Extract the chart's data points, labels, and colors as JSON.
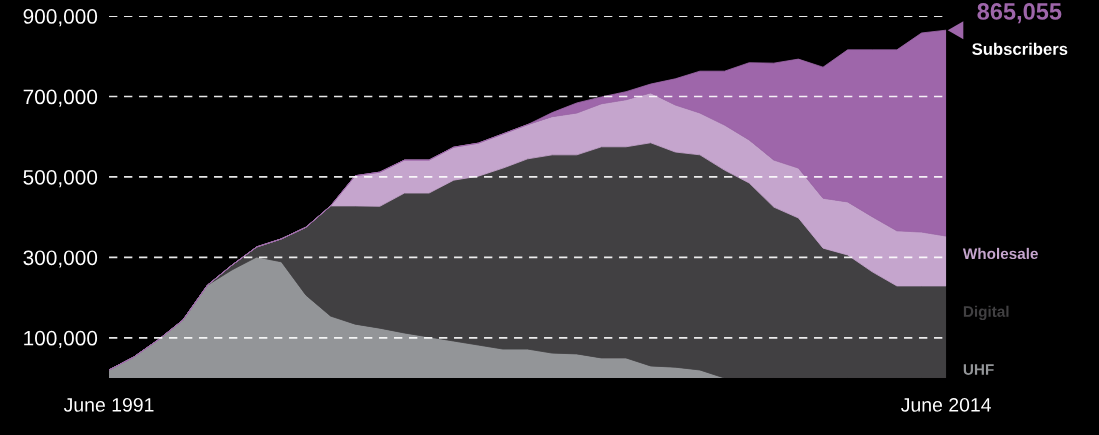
{
  "chart_data": {
    "type": "area",
    "stacked": true,
    "categories": [
      "June 1991",
      null,
      null,
      null,
      null,
      null,
      null,
      null,
      null,
      null,
      null,
      null,
      null,
      null,
      null,
      null,
      null,
      null,
      null,
      null,
      null,
      null,
      null,
      null,
      null,
      null,
      null,
      null,
      null,
      null,
      null,
      null,
      null,
      null,
      "June 2014"
    ],
    "series": [
      {
        "name": "UHF",
        "color": "#939598",
        "values": [
          20000,
          52000,
          95000,
          144000,
          231000,
          269000,
          301000,
          289000,
          206000,
          154000,
          134000,
          124000,
          112000,
          102000,
          92000,
          82000,
          72000,
          72000,
          62000,
          60000,
          50000,
          50000,
          30000,
          27000,
          20000,
          0,
          0,
          0,
          0,
          0,
          0,
          0,
          0,
          0,
          0
        ]
      },
      {
        "name": "Digital",
        "color": "#414042",
        "values": [
          0,
          0,
          0,
          0,
          0,
          12000,
          25000,
          57000,
          169000,
          274000,
          294000,
          303000,
          348000,
          358000,
          400000,
          420000,
          450000,
          473000,
          493000,
          495000,
          525000,
          525000,
          555000,
          535000,
          535000,
          517000,
          485000,
          425000,
          398000,
          323000,
          306000,
          264000,
          229000,
          229000,
          229000
        ]
      },
      {
        "name": "Wholesale",
        "color": "#c5a5cd",
        "values": [
          0,
          0,
          0,
          0,
          0,
          0,
          0,
          0,
          0,
          0,
          75000,
          85000,
          82000,
          82000,
          82000,
          82000,
          85000,
          85000,
          95000,
          104000,
          107000,
          117000,
          124000,
          117000,
          104000,
          112000,
          107000,
          117000,
          124000,
          124000,
          132000,
          137000,
          137000,
          134000,
          124000
        ]
      },
      {
        "color": "#9e66aa",
        "values": [
          0,
          0,
          0,
          0,
          0,
          0,
          0,
          0,
          0,
          0,
          0,
          0,
          0,
          0,
          0,
          0,
          0,
          0,
          10000,
          25000,
          17000,
          20000,
          22000,
          65000,
          104000,
          134000,
          192000,
          241000,
          271000,
          326000,
          378000,
          415000,
          450000,
          495000,
          512000
        ]
      }
    ],
    "ylim": [
      0,
      900000
    ],
    "yticks": [
      {
        "value": 100000,
        "label": "100,000"
      },
      {
        "value": 300000,
        "label": "300,000"
      },
      {
        "value": 500000,
        "label": "500,000"
      },
      {
        "value": 700000,
        "label": "700,000"
      },
      {
        "value": 900000,
        "label": "900,000"
      }
    ],
    "grid": "y",
    "annotations": [
      {
        "text": "865,055",
        "x": "June 2014",
        "y": 865000
      },
      "Subscribers"
    ]
  }
}
